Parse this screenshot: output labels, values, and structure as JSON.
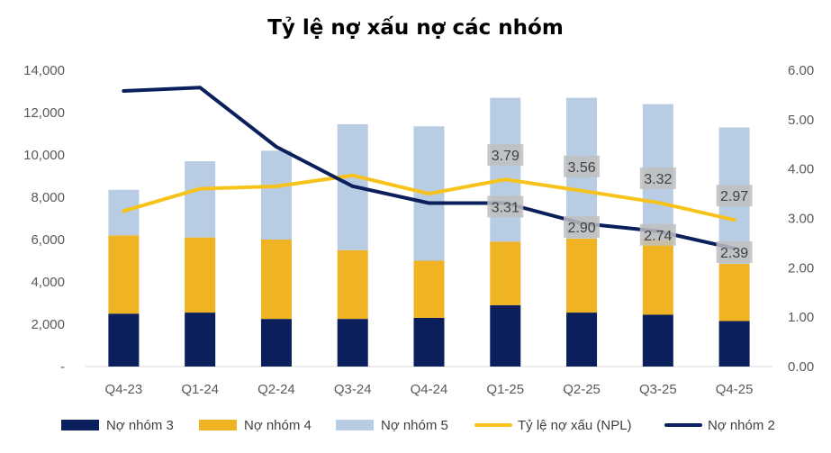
{
  "chart_data": {
    "type": "bar",
    "title": "Tỷ lệ nợ xấu nợ các nhóm",
    "categories": [
      "Q4-23",
      "Q1-24",
      "Q2-24",
      "Q3-24",
      "Q4-24",
      "Q1-25",
      "Q2-25",
      "Q3-25",
      "Q4-25"
    ],
    "stacked_series": [
      {
        "name": "Nợ nhóm 3",
        "color": "#0a1f5c",
        "values": [
          2500,
          2550,
          2250,
          2250,
          2300,
          2900,
          2550,
          2450,
          2150
        ]
      },
      {
        "name": "Nợ nhóm 4",
        "color": "#f0b323",
        "values": [
          3700,
          3550,
          3750,
          3250,
          2700,
          3000,
          3500,
          3550,
          2700
        ]
      },
      {
        "name": "Nợ nhóm 5",
        "color": "#b8cce4",
        "values": [
          2150,
          3600,
          4200,
          5950,
          6350,
          6800,
          6650,
          6400,
          6450
        ]
      }
    ],
    "line_series": [
      {
        "name": "Tỷ lệ nợ xấu (NPL)",
        "color": "#f7c31a",
        "values": [
          3.15,
          3.6,
          3.65,
          3.87,
          3.5,
          3.79,
          3.56,
          3.32,
          2.97
        ],
        "labels": [
          "",
          "",
          "",
          "",
          "",
          "3.79",
          "3.56",
          "3.32",
          "2.97"
        ]
      },
      {
        "name": "Nợ nhóm 2",
        "color": "#0a1f5c",
        "values": [
          5.58,
          5.65,
          4.45,
          3.65,
          3.31,
          3.31,
          2.9,
          2.74,
          2.39
        ],
        "labels": [
          "",
          "",
          "",
          "",
          "",
          "3.31",
          "2.90",
          "2.74",
          "2.39"
        ]
      }
    ],
    "y_left": {
      "min": 0,
      "max": 14000,
      "step": 2000,
      "tick_labels": [
        "-",
        "2,000",
        "4,000",
        "6,000",
        "8,000",
        "10,000",
        "12,000",
        "14,000"
      ]
    },
    "y_right": {
      "min": 0,
      "max": 6,
      "step": 1,
      "tick_labels": [
        "0.00",
        "1.00",
        "2.00",
        "3.00",
        "4.00",
        "5.00",
        "6.00"
      ]
    },
    "gridlines": false,
    "legend_position": "bottom"
  }
}
